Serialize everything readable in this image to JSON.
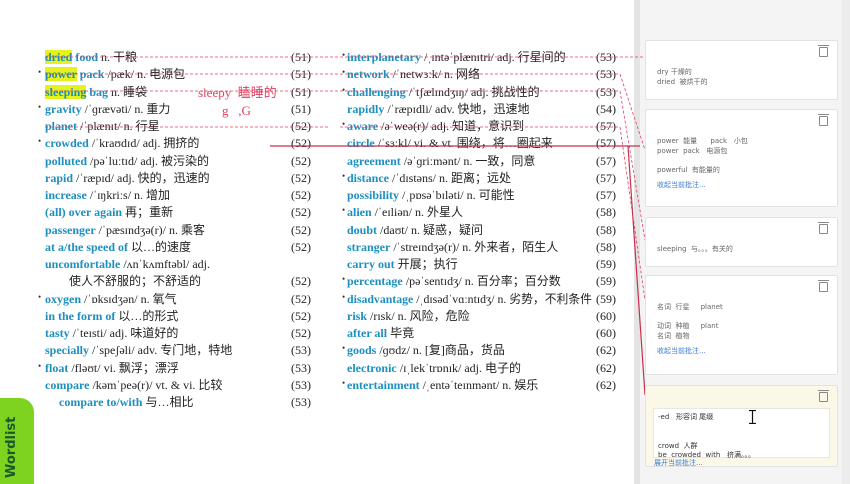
{
  "left_entries": [
    {
      "term": "dried food",
      "rest": " n. 干粮",
      "page": "(51)",
      "bullet": false,
      "hl": "dried"
    },
    {
      "term": "power pack",
      "rest": " /pæk/ n. 电源包",
      "page": "(51)",
      "bullet": true,
      "hl": "power"
    },
    {
      "term": "sleeping bag",
      "rest": " n. 睡袋",
      "page": "(51)",
      "bullet": false,
      "hl": "sleeping"
    },
    {
      "term": "gravity",
      "rest": " /ˈɡrævəti/ n. 重力",
      "page": "(51)",
      "bullet": true
    },
    {
      "term": "planet",
      "rest": " /ˈplænɪt/ n. 行星",
      "page": "(52)",
      "bullet": false
    },
    {
      "term": "crowded",
      "rest": " /ˈkraʊdɪd/ adj. 拥挤的",
      "page": "(52)",
      "bullet": true
    },
    {
      "term": "polluted",
      "rest": " /pəˈluːtɪd/ adj. 被污染的",
      "page": "(52)",
      "bullet": false
    },
    {
      "term": "rapid",
      "rest": " /ˈræpɪd/ adj. 快的，迅速的",
      "page": "(52)",
      "bullet": false
    },
    {
      "term": "increase",
      "rest": " /ˈɪŋkriːs/ n. 增加",
      "page": "(52)",
      "bullet": false
    },
    {
      "term": "(all) over again",
      "rest": " 再；重新",
      "page": "(52)",
      "bullet": false
    },
    {
      "term": "passenger",
      "rest": " /ˈpæsɪndʒə(r)/ n. 乘客",
      "page": "(52)",
      "bullet": false
    },
    {
      "term": "at a/the speed of",
      "rest": " 以…的速度",
      "page": "(52)",
      "bullet": false
    },
    {
      "term": "uncomfortable",
      "rest": " /ʌnˈkʌmftəbl/ adj.",
      "page": "",
      "bullet": false
    },
    {
      "term": "",
      "rest": "使人不舒服的；不舒适的",
      "page": "(52)",
      "bullet": false,
      "indent": true
    },
    {
      "term": "oxygen",
      "rest": " /ˈɒksɪdʒən/ n. 氧气",
      "page": "(52)",
      "bullet": true
    },
    {
      "term": "in the form of",
      "rest": " 以…的形式",
      "page": "(52)",
      "bullet": false
    },
    {
      "term": "tasty",
      "rest": " /ˈteɪsti/ adj. 味道好的",
      "page": "(52)",
      "bullet": false
    },
    {
      "term": "specially",
      "rest": " /ˈspeʃəli/ adv. 专门地，特地",
      "page": "(53)",
      "bullet": false
    },
    {
      "term": "float",
      "rest": " /fləʊt/ vi. 飘浮；漂浮",
      "page": "(53)",
      "bullet": true
    },
    {
      "term": "compare",
      "rest": " /kəmˈpeə(r)/ vt. & vi. 比较",
      "page": "(53)",
      "bullet": false
    },
    {
      "term": "compare to/with",
      "rest": " 与…相比",
      "page": "(53)",
      "bullet": false,
      "indent": true
    }
  ],
  "right_entries": [
    {
      "term": "interplanetary",
      "rest": " /ˌɪntəˈplænɪtri/ adj. 行星间的",
      "page": "(53)",
      "bullet": true
    },
    {
      "term": "network",
      "rest": " /ˈnetwɜːk/ n. 网络",
      "page": "(53)",
      "bullet": true
    },
    {
      "term": "challenging",
      "rest": " /ˈtʃælɪndʒɪŋ/ adj. 挑战性的",
      "page": "(53)",
      "bullet": true
    },
    {
      "term": "rapidly",
      "rest": " /ˈræpɪdli/ adv. 快地，迅速地",
      "page": "(54)",
      "bullet": false
    },
    {
      "term": "aware",
      "rest": " /əˈweə(r)/ adj. 知道，意识到",
      "page": "(57)",
      "bullet": true
    },
    {
      "term": "circle",
      "rest": " /ˈsɜːkl/ vi. & vt. 围绕，将…圈起来",
      "page": "(57)",
      "bullet": false
    },
    {
      "term": "agreement",
      "rest": " /əˈɡriːmənt/ n. 一致，同意",
      "page": "(57)",
      "bullet": false
    },
    {
      "term": "distance",
      "rest": " /ˈdɪstəns/ n. 距离；远处",
      "page": "(57)",
      "bullet": true
    },
    {
      "term": "possibility",
      "rest": " /ˌpɒsəˈbɪləti/ n. 可能性",
      "page": "(57)",
      "bullet": false
    },
    {
      "term": "alien",
      "rest": " /ˈeɪliən/ n. 外星人",
      "page": "(58)",
      "bullet": true
    },
    {
      "term": "doubt",
      "rest": " /daʊt/ n. 疑惑，疑问",
      "page": "(58)",
      "bullet": false
    },
    {
      "term": "stranger",
      "rest": " /ˈstreɪndʒə(r)/ n. 外来者，陌生人",
      "page": "(58)",
      "bullet": false
    },
    {
      "term": "carry out",
      "rest": " 开展；执行",
      "page": "(59)",
      "bullet": false
    },
    {
      "term": "percentage",
      "rest": " /pəˈsentɪdʒ/ n. 百分率；百分数",
      "page": "(59)",
      "bullet": true
    },
    {
      "term": "disadvantage",
      "rest": " /ˌdɪsədˈvɑːntɪdʒ/ n. 劣势，不利条件",
      "page": "(59)",
      "bullet": true
    },
    {
      "term": "risk",
      "rest": " /rɪsk/ n. 风险，危险",
      "page": "(60)",
      "bullet": false
    },
    {
      "term": "after all",
      "rest": " 毕竟",
      "page": "(60)",
      "bullet": false
    },
    {
      "term": "goods",
      "rest": " /ɡʊdz/ n. [复]商品，货品",
      "page": "(62)",
      "bullet": true
    },
    {
      "term": "electronic",
      "rest": " /ɪˌlekˈtrɒnɪk/ adj. 电子的",
      "page": "(62)",
      "bullet": false
    },
    {
      "term": "entertainment",
      "rest": " /ˌentəˈteɪnmənt/ n. 娱乐",
      "page": "(62)",
      "bullet": true
    }
  ],
  "handwriting": {
    "line1": "sleepy  瞌睡的",
    "line2": "g   ,G"
  },
  "side_tab": "Wordlist",
  "comments": [
    {
      "lines": [
        "dry 干燥的",
        "dried  被烘干的"
      ]
    },
    {
      "lines": [
        "power  能量      pack   小包",
        "power  pack   电源包",
        "",
        "powerful  有能量的"
      ],
      "link": "收起当前批注..."
    },
    {
      "lines": [
        "sleeping  与。。。有关的"
      ]
    },
    {
      "lines": [
        "名词  行星     planet",
        "",
        "动词  种植     plant",
        "名词  植物"
      ],
      "link": "收起当前批注..."
    },
    {
      "lines": [
        "-ed   形容词 尾缀",
        "",
        "",
        "crowd  人群",
        "be  crowded  with   挤满。。。"
      ],
      "link": "展开当前批注...",
      "active": true
    }
  ],
  "colors": {
    "term": "#1c8fc0",
    "annotation": "#e04060",
    "highlight": "#e6f21a",
    "active_card": "#fbf8e8",
    "side_tab": "#7ed321"
  }
}
